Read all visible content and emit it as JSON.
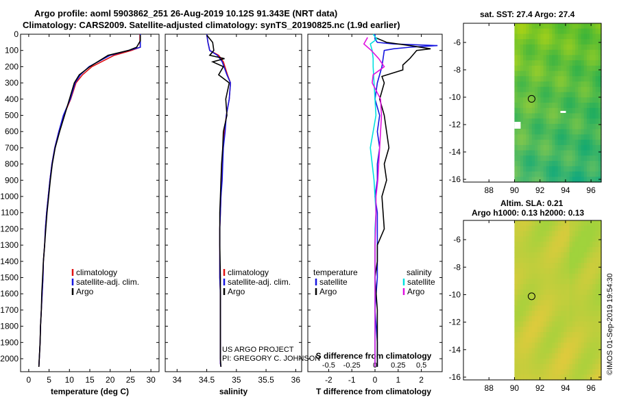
{
  "header": {
    "title_line1": "Argo profile: aoml 5903862_251 26-Aug-2019 10.12S 91.343E (NRT data)",
    "title_line2": "Climatology: CARS2009. Satellite-adjusted climatology: synTS_20190825.nc (1.9d earlier)"
  },
  "maps": {
    "sst_title": "sat. SST: 27.4 Argo: 27.4",
    "sla_title_line1": "Altim. SLA: 0.21",
    "sla_title_line2": "Argo h1000: 0.13 h2000: 0.13",
    "lon_ticks": [
      "88",
      "90",
      "92",
      "94",
      "96"
    ],
    "lat_ticks": [
      "-6",
      "-8",
      "-10",
      "-12",
      "-14",
      "-16"
    ],
    "float_lon": 91.343,
    "float_lat": -10.12
  },
  "credits": {
    "project": "US ARGO PROJECT",
    "pi": "PI: GREGORY C. JOHNSON",
    "imos": "©IMOS 01-Sep-2019 19:54:30"
  },
  "colors": {
    "climatology": "#e01010",
    "satellite": "#1515e0",
    "argo": "#000000",
    "sal_satellite": "#00e0e0",
    "sal_argo": "#e010e0"
  },
  "chart_data": [
    {
      "type": "line",
      "name": "temperature",
      "xlabel": "temperature (deg C)",
      "ylabel": "",
      "xlim": [
        -2,
        32
      ],
      "ylim": [
        2080,
        0
      ],
      "xticks": [
        0,
        5,
        10,
        15,
        20,
        25,
        30
      ],
      "yticks": [
        0,
        100,
        200,
        300,
        400,
        500,
        600,
        700,
        800,
        900,
        1000,
        1100,
        1200,
        1300,
        1400,
        1500,
        1600,
        1700,
        1800,
        1900,
        2000
      ],
      "legend": [
        "climatology",
        "satellite-adj. clim.",
        "Argo"
      ],
      "series": [
        {
          "name": "climatology",
          "x": [
            27.3,
            27.3,
            27.4,
            25.2,
            21,
            15.5,
            13.2,
            11.6,
            10.3,
            8.6,
            7.4,
            6.4,
            5.7,
            5.2,
            4.8,
            4.4,
            4.1,
            3.9,
            3.6,
            3.5,
            3.3,
            3.1,
            2.9,
            2.8,
            2.7,
            2.6,
            2.5
          ],
          "y": [
            0,
            40,
            80,
            100,
            130,
            200,
            250,
            300,
            400,
            500,
            600,
            700,
            800,
            900,
            1000,
            1100,
            1200,
            1300,
            1400,
            1500,
            1600,
            1700,
            1800,
            1900,
            1950,
            2000,
            2050
          ]
        },
        {
          "name": "satellite-adj. clim.",
          "x": [
            27.4,
            27.4,
            27.4,
            24.5,
            20,
            14.8,
            12.7,
            11.4,
            10.2,
            8.5,
            7.4,
            6.4,
            5.7,
            5.2,
            4.8,
            4.4,
            4.1,
            3.9,
            3.6,
            3.5,
            3.3,
            3.1,
            2.9,
            2.8,
            2.7,
            2.6,
            2.5
          ],
          "y": [
            0,
            40,
            80,
            100,
            130,
            200,
            250,
            300,
            400,
            500,
            600,
            700,
            800,
            900,
            1000,
            1100,
            1200,
            1300,
            1400,
            1500,
            1600,
            1700,
            1800,
            1900,
            1950,
            2000,
            2050
          ]
        },
        {
          "name": "Argo",
          "x": [
            27.4,
            27.4,
            26.5,
            24.5,
            19.5,
            15,
            12.4,
            11.2,
            10,
            8.8,
            7.6,
            6.5,
            5.8,
            5.3,
            4.9,
            4.5,
            4.2,
            3.9,
            3.6,
            3.4,
            3.2,
            3.1,
            2.9,
            2.8,
            2.7,
            2.6,
            2.5
          ],
          "y": [
            5,
            40,
            80,
            100,
            130,
            200,
            250,
            300,
            400,
            500,
            600,
            700,
            800,
            900,
            1000,
            1100,
            1200,
            1300,
            1400,
            1500,
            1600,
            1700,
            1800,
            1900,
            1950,
            2000,
            2050
          ]
        }
      ]
    },
    {
      "type": "line",
      "name": "salinity",
      "xlabel": "salinity",
      "ylabel": "",
      "xlim": [
        33.8,
        36.1
      ],
      "ylim": [
        2080,
        0
      ],
      "xticks": [
        34,
        34.5,
        35,
        35.5,
        36
      ],
      "legend": [
        "climatology",
        "satellite-adj. clim.",
        "Argo"
      ],
      "series": [
        {
          "name": "climatology",
          "x": [
            34.5,
            34.52,
            34.55,
            34.7,
            34.78,
            34.85,
            34.9,
            34.88,
            34.83,
            34.8,
            34.77,
            34.76,
            34.75,
            34.74,
            34.73,
            34.72,
            34.72,
            34.72,
            34.72,
            34.73,
            34.73,
            34.73,
            34.73,
            34.73,
            34.73,
            34.74
          ],
          "y": [
            0,
            50,
            100,
            130,
            170,
            250,
            300,
            400,
            500,
            600,
            700,
            800,
            900,
            1000,
            1100,
            1200,
            1300,
            1400,
            1500,
            1600,
            1700,
            1800,
            1900,
            2000,
            2030,
            2050
          ]
        },
        {
          "name": "satellite-adj. clim.",
          "x": [
            34.5,
            34.52,
            34.55,
            34.68,
            34.76,
            34.84,
            34.9,
            34.88,
            34.83,
            34.81,
            34.78,
            34.77,
            34.76,
            34.74,
            34.73,
            34.72,
            34.72,
            34.72,
            34.72,
            34.73,
            34.73,
            34.73,
            34.73,
            34.73,
            34.73,
            34.74
          ],
          "y": [
            0,
            50,
            100,
            130,
            170,
            250,
            300,
            400,
            500,
            600,
            700,
            800,
            900,
            1000,
            1100,
            1200,
            1300,
            1400,
            1500,
            1600,
            1700,
            1800,
            1900,
            2000,
            2030,
            2050
          ]
        },
        {
          "name": "Argo",
          "x": [
            34.5,
            34.6,
            34.62,
            34.55,
            34.8,
            34.6,
            34.78,
            34.7,
            34.88,
            34.82,
            34.84,
            34.78,
            34.77,
            34.75,
            34.74,
            34.73,
            34.72,
            34.72,
            34.72,
            34.73,
            34.73,
            34.73,
            34.73,
            34.73,
            34.73,
            34.74
          ],
          "y": [
            5,
            50,
            100,
            130,
            150,
            170,
            200,
            250,
            300,
            400,
            500,
            600,
            700,
            800,
            900,
            1000,
            1100,
            1200,
            1300,
            1500,
            1600,
            1700,
            1800,
            1900,
            2000,
            2050
          ]
        }
      ]
    },
    {
      "type": "line",
      "name": "differences",
      "xlabel": "T difference from climatology",
      "x2label": "S difference from climatology",
      "ylabel": "",
      "xlim": [
        -2.9,
        2.9
      ],
      "ylim": [
        2080,
        0
      ],
      "xticks": [
        -2,
        -1,
        0,
        1,
        2
      ],
      "x2ticks": [
        "-0.5",
        "-0.25",
        "0",
        "0.25",
        "0.5"
      ],
      "legend_title_left": "temperature",
      "legend_title_right": "salinity",
      "legend_left": [
        "satellite",
        "Argo"
      ],
      "legend_right": [
        "satellite",
        "Argo"
      ],
      "series": [
        {
          "name": "temperature satellite",
          "x": [
            0,
            0,
            0.1,
            0.8,
            2.7,
            1.5,
            0.8,
            0.4,
            0.3,
            0.1,
            0,
            0.2,
            0.1,
            0.2,
            0.1,
            0.1,
            0,
            0.1,
            0.1,
            0.1,
            0.1,
            0.1,
            0,
            0.1,
            0.1
          ],
          "y": [
            0,
            30,
            50,
            60,
            70,
            80,
            90,
            100,
            200,
            300,
            400,
            500,
            600,
            700,
            800,
            900,
            1000,
            1100,
            1200,
            1300,
            1400,
            1500,
            1700,
            1900,
            2050
          ]
        },
        {
          "name": "temperature Argo",
          "x": [
            0,
            0.5,
            1.5,
            2.4,
            1.8,
            1.5,
            1.2,
            1.2,
            0.3,
            0.4,
            0.2,
            0.4,
            0.5,
            0.6,
            0.4,
            0.5,
            0.3,
            0.4,
            0.1,
            0.1,
            0,
            0.1,
            0.1,
            0.1
          ],
          "y": [
            20,
            50,
            70,
            90,
            100,
            150,
            190,
            220,
            260,
            300,
            400,
            500,
            600,
            700,
            800,
            900,
            1000,
            1200,
            1300,
            1400,
            1500,
            1700,
            1900,
            2050
          ]
        },
        {
          "name": "salinity satellite",
          "x": [
            -0.02,
            0.02,
            -0.05,
            -0.03,
            -0.02,
            -0.02,
            -0.01,
            0,
            0.01,
            -0.02,
            -0.05,
            -0.03,
            -0.01,
            0,
            0.01,
            0,
            0,
            0,
            0,
            0
          ],
          "y": [
            0,
            30,
            60,
            100,
            150,
            200,
            300,
            400,
            500,
            600,
            700,
            800,
            900,
            1000,
            1100,
            1200,
            1400,
            1600,
            1800,
            2050
          ]
        },
        {
          "name": "salinity Argo",
          "x": [
            -0.08,
            -0.12,
            -0.04,
            0.04,
            0.1,
            -0.02,
            -0.03,
            0.06,
            0.07,
            0.06,
            0.05,
            0.04,
            0.03,
            0.01,
            0.01,
            0,
            0,
            0,
            0,
            0
          ],
          "y": [
            20,
            60,
            100,
            150,
            200,
            250,
            300,
            400,
            500,
            600,
            700,
            800,
            900,
            1000,
            1100,
            1300,
            1500,
            1700,
            1900,
            2050
          ]
        }
      ]
    }
  ]
}
